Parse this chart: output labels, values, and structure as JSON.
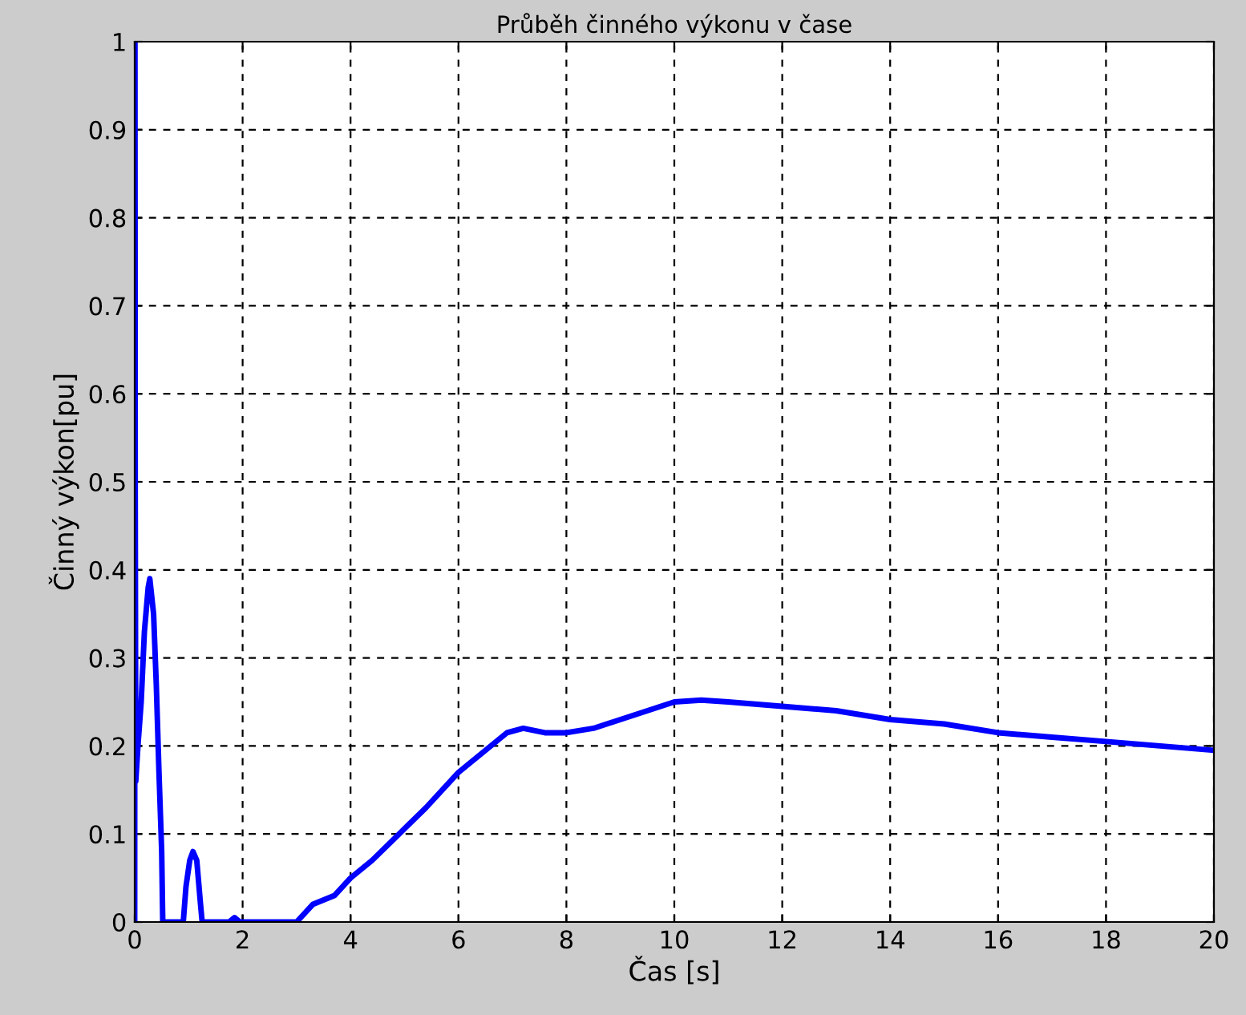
{
  "chart_data": {
    "type": "line",
    "title": "Průběh činného výkonu v čase",
    "xlabel": "Čas [s]",
    "ylabel": "Činný výkon[pu]",
    "x": [
      0,
      0.005,
      0.01,
      0.02,
      0.06,
      0.12,
      0.18,
      0.25,
      0.28,
      0.35,
      0.4,
      0.45,
      0.5,
      0.52,
      0.9,
      0.95,
      1.02,
      1.08,
      1.15,
      1.22,
      1.25,
      1.75,
      1.85,
      1.95,
      2.6,
      3.0,
      3.3,
      3.7,
      4.0,
      4.4,
      4.9,
      5.4,
      6.0,
      6.6,
      6.9,
      7.2,
      7.6,
      8.0,
      8.5,
      9.0,
      9.5,
      10.0,
      10.5,
      11,
      12,
      13,
      14,
      15,
      16,
      17,
      18,
      19,
      20
    ],
    "series": [
      {
        "color": "#0000ff",
        "values": [
          0,
          1.0,
          0.49,
          0.16,
          0.2,
          0.25,
          0.33,
          0.38,
          0.39,
          0.35,
          0.27,
          0.17,
          0.08,
          0,
          0,
          0.04,
          0.07,
          0.08,
          0.07,
          0.02,
          0,
          0,
          0.005,
          0,
          0,
          0,
          0.02,
          0.03,
          0.05,
          0.07,
          0.1,
          0.13,
          0.17,
          0.2,
          0.215,
          0.22,
          0.215,
          0.215,
          0.22,
          0.23,
          0.24,
          0.25,
          0.252,
          0.25,
          0.245,
          0.24,
          0.23,
          0.225,
          0.215,
          0.21,
          0.205,
          0.2,
          0.195
        ]
      }
    ],
    "xlim": [
      0,
      20
    ],
    "xticks": [
      0,
      2,
      4,
      6,
      8,
      10,
      12,
      14,
      16,
      18,
      20
    ],
    "ylim": [
      0,
      1
    ],
    "yticks": [
      0,
      0.1,
      0.2,
      0.3,
      0.4,
      0.5,
      0.6,
      0.7,
      0.8,
      0.9,
      1
    ],
    "grid": true,
    "line_style": "solid",
    "marker": "none"
  }
}
